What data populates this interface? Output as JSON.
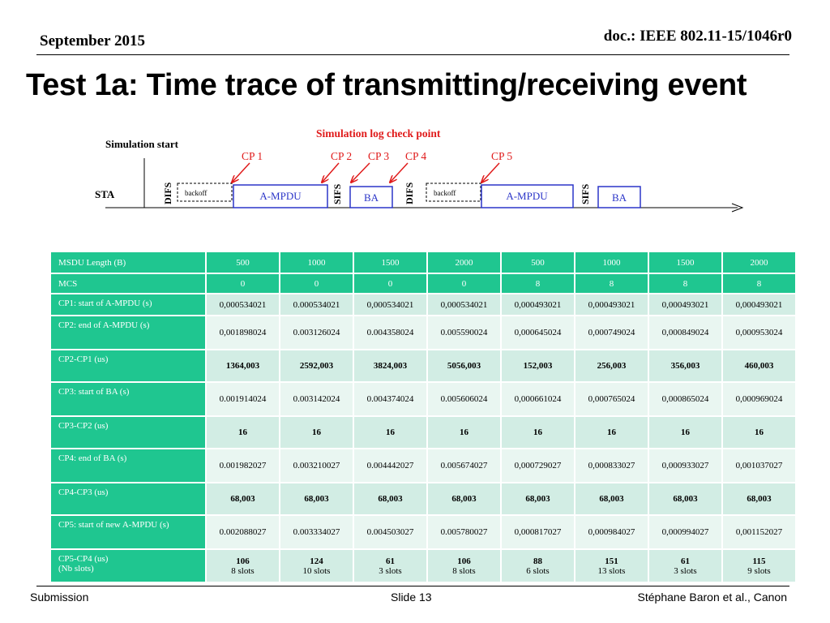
{
  "header": {
    "date": "September 2015",
    "doc": "doc.: IEEE 802.11-15/1046r0"
  },
  "title": "Test 1a: Time trace of transmitting/receiving event",
  "diagram": {
    "simulation_start": "Simulation start",
    "log_check": "Simulation log check point",
    "sta": "STA",
    "difs": "DIFS",
    "sifs": "SIFS",
    "backoff": "backoff",
    "ampdu": "A-MPDU",
    "ba": "BA",
    "cp1": "CP 1",
    "cp2": "CP 2",
    "cp3": "CP 3",
    "cp4": "CP 4",
    "cp5": "CP 5",
    "colors": {
      "red": "#e01b1b",
      "blue": "#2b35c8"
    }
  },
  "table": {
    "header": {
      "label": "MSDU Length (B)",
      "cells": [
        "500",
        "1000",
        "1500",
        "2000",
        "500",
        "1000",
        "1500",
        "2000"
      ]
    },
    "mcs": {
      "label": "MCS",
      "cells": [
        "0",
        "0",
        "0",
        "0",
        "8",
        "8",
        "8",
        "8"
      ]
    },
    "cp1": {
      "label": "CP1: start of A-MPDU (s)",
      "cells": [
        "0,000534021",
        "0.000534021",
        "0,000534021",
        "0,000534021",
        "0,000493021",
        "0,000493021",
        "0,000493021",
        "0,000493021"
      ]
    },
    "cp2": {
      "label": "CP2: end of A-MPDU (s)",
      "cells": [
        "0,001898024",
        "0.003126024",
        "0.004358024",
        "0.005590024",
        "0,000645024",
        "0,000749024",
        "0,000849024",
        "0,000953024"
      ]
    },
    "cp2cp1": {
      "label": "CP2-CP1 (us)",
      "cells": [
        "1364,003",
        "2592,003",
        "3824,003",
        "5056,003",
        "152,003",
        "256,003",
        "356,003",
        "460,003"
      ]
    },
    "cp3": {
      "label": "CP3: start of BA (s)",
      "cells": [
        "0.001914024",
        "0.003142024",
        "0.004374024",
        "0.005606024",
        "0,000661024",
        "0,000765024",
        "0,000865024",
        "0,000969024"
      ]
    },
    "cp3cp2": {
      "label": "CP3-CP2 (us)",
      "cells": [
        "16",
        "16",
        "16",
        "16",
        "16",
        "16",
        "16",
        "16"
      ]
    },
    "cp4": {
      "label": "CP4: end of BA (s)",
      "cells": [
        "0.001982027",
        "0.003210027",
        "0.004442027",
        "0.005674027",
        "0,000729027",
        "0,000833027",
        "0,000933027",
        "0,001037027"
      ]
    },
    "cp4cp3": {
      "label": "CP4-CP3 (us)",
      "cells": [
        "68,003",
        "68,003",
        "68,003",
        "68,003",
        "68,003",
        "68,003",
        "68,003",
        "68,003"
      ]
    },
    "cp5": {
      "label": "CP5: start of new A-MPDU (s)",
      "cells": [
        "0.002088027",
        "0.003334027",
        "0.004503027",
        "0.005780027",
        "0,000817027",
        "0,000984027",
        "0,000994027",
        "0,001152027"
      ]
    },
    "cp5cp4": {
      "label": "CP5-CP4 (us)",
      "label2": "(Nb slots)",
      "cells": [
        {
          "v": "106",
          "s": "8 slots"
        },
        {
          "v": "124",
          "s": "10 slots"
        },
        {
          "v": "61",
          "s": "3 slots"
        },
        {
          "v": "106",
          "s": "8 slots"
        },
        {
          "v": "88",
          "s": "6 slots"
        },
        {
          "v": "151",
          "s": "13 slots"
        },
        {
          "v": "61",
          "s": "3 slots"
        },
        {
          "v": "115",
          "s": "9 slots"
        }
      ]
    }
  },
  "footer": {
    "left": "Submission",
    "center": "Slide 13",
    "right": "Stéphane Baron et al., Canon"
  }
}
